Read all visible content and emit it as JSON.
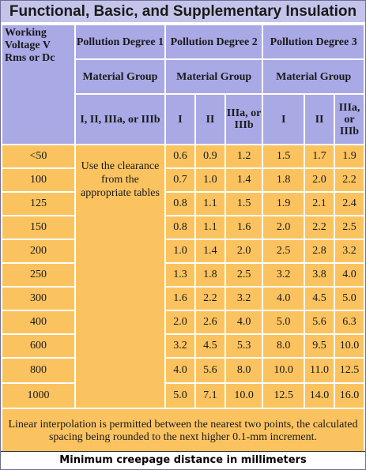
{
  "title": "Functional, Basic, and Supplementary Insulation",
  "header": {
    "working_voltage": "Working Voltage V Rms or Dc",
    "pd1": "Pollution Degree 1",
    "pd2": "Pollution Degree 2",
    "pd3": "Pollution Degree 3",
    "material_group": "Material Group",
    "pd1_groups": "I, II, IIIa, or IIIb",
    "group_i": "I",
    "group_ii": "II",
    "group_iii": "IIIa, or IIIb"
  },
  "pd1_note": "Use the clearance from the appropriate tables",
  "rows": [
    {
      "voltage": "<50",
      "values": [
        "0.6",
        "0.9",
        "1.2",
        "1.5",
        "1.7",
        "1.9"
      ]
    },
    {
      "voltage": "100",
      "values": [
        "0.7",
        "1.0",
        "1.4",
        "1.8",
        "2.0",
        "2.2"
      ]
    },
    {
      "voltage": "125",
      "values": [
        "0.8",
        "1.1",
        "1.5",
        "1.9",
        "2.1",
        "2.4"
      ]
    },
    {
      "voltage": "150",
      "values": [
        "0.8",
        "1.1",
        "1.6",
        "2.0",
        "2.2",
        "2.5"
      ]
    },
    {
      "voltage": "200",
      "values": [
        "1.0",
        "1.4",
        "2.0",
        "2.5",
        "2.8",
        "3.2"
      ]
    },
    {
      "voltage": "250",
      "values": [
        "1.3",
        "1.8",
        "2.5",
        "3.2",
        "3.8",
        "4.0"
      ]
    },
    {
      "voltage": "300",
      "values": [
        "1.6",
        "2.2",
        "3.2",
        "4.0",
        "4.5",
        "5.0"
      ]
    },
    {
      "voltage": "400",
      "values": [
        "2.0",
        "2.6",
        "4.0",
        "5.0",
        "5.6",
        "6.3"
      ]
    },
    {
      "voltage": "600",
      "values": [
        "3.2",
        "4.5",
        "5.3",
        "8.0",
        "9.5",
        "10.0"
      ]
    },
    {
      "voltage": "800",
      "values": [
        "4.0",
        "5.6",
        "8.0",
        "10.0",
        "11.0",
        "12.5"
      ]
    },
    {
      "voltage": "1000",
      "values": [
        "5.0",
        "7.1",
        "10.0",
        "12.5",
        "14.0",
        "16.0"
      ]
    }
  ],
  "footnote": "Linear interpolation is permitted between the nearest two points, the calculated spacing being rounded to the next higher 0.1-mm increment.",
  "caption": "Minimum creepage distance in millimeters"
}
